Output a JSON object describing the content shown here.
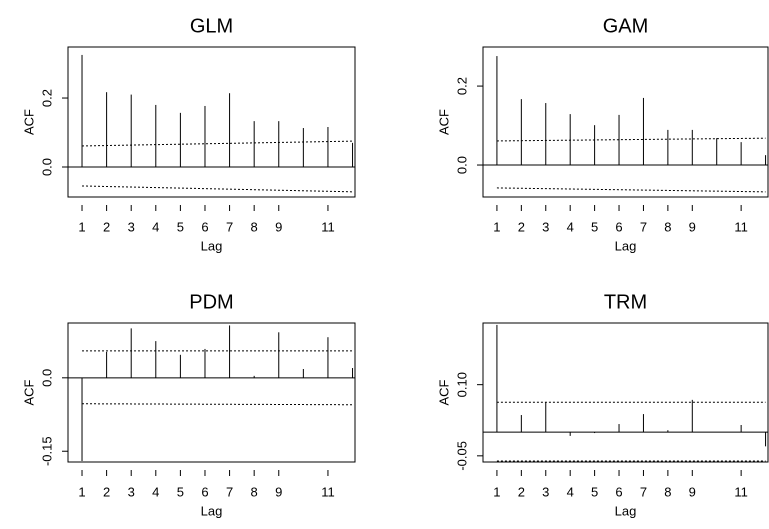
{
  "chart_data": [
    {
      "type": "acf",
      "title": "GLM",
      "x_label": "Lag",
      "y_label": "ACF",
      "x": [
        1,
        2,
        3,
        4,
        5,
        6,
        7,
        8,
        9,
        10,
        11,
        12
      ],
      "values": [
        0.325,
        0.217,
        0.21,
        0.18,
        0.157,
        0.177,
        0.214,
        0.133,
        0.133,
        0.113,
        0.116,
        0.07
      ],
      "conf_band": {
        "x": [
          1,
          12
        ],
        "upper": [
          0.061,
          0.075
        ],
        "lower": [
          -0.055,
          -0.072
        ]
      },
      "xlim": [
        0.43,
        12.1
      ],
      "xticks": [
        1,
        2,
        3,
        4,
        5,
        6,
        7,
        8,
        9,
        11
      ],
      "ylim": [
        -0.087,
        0.348
      ],
      "yticks": [
        {
          "value": 0,
          "label": "0.0"
        },
        0.2
      ],
      "color": "#000000"
    },
    {
      "type": "acf",
      "title": "GAM",
      "x_label": "Lag",
      "y_label": "ACF",
      "x": [
        1,
        2,
        3,
        4,
        5,
        6,
        7,
        8,
        9,
        10,
        11,
        12
      ],
      "values": [
        0.276,
        0.167,
        0.157,
        0.129,
        0.101,
        0.127,
        0.17,
        0.089,
        0.089,
        0.068,
        0.058,
        0.025
      ],
      "conf_band": {
        "x": [
          1,
          12
        ],
        "upper": [
          0.061,
          0.068
        ],
        "lower": [
          -0.058,
          -0.068
        ]
      },
      "xlim": [
        0.43,
        12.1
      ],
      "xticks": [
        1,
        2,
        3,
        4,
        5,
        6,
        7,
        8,
        9,
        11
      ],
      "ylim": [
        -0.081,
        0.299
      ],
      "yticks": [
        {
          "value": 0,
          "label": "0.0"
        },
        0.2
      ],
      "color": "#000000"
    },
    {
      "type": "acf",
      "title": "PDM",
      "x_label": "Lag",
      "y_label": "ACF",
      "x": [
        1,
        2,
        3,
        4,
        5,
        6,
        7,
        8,
        9,
        10,
        11,
        12
      ],
      "values": [
        -0.17,
        0.053,
        0.101,
        0.075,
        0.047,
        0.059,
        0.107,
        0.004,
        0.093,
        0.018,
        0.083,
        0.02
      ],
      "conf_band": {
        "x": [
          1,
          12
        ],
        "upper": [
          0.055,
          0.055
        ],
        "lower": [
          -0.053,
          -0.055
        ]
      },
      "xlim": [
        0.43,
        12.1
      ],
      "xticks": [
        1,
        2,
        3,
        4,
        5,
        6,
        7,
        8,
        9,
        11
      ],
      "ylim": [
        -0.172,
        0.112
      ],
      "yticks": [
        -0.15,
        {
          "value": 0,
          "label": "0.0"
        }
      ],
      "color": "#000000"
    },
    {
      "type": "acf",
      "title": "TRM",
      "x_label": "Lag",
      "y_label": "ACF",
      "x": [
        1,
        2,
        3,
        4,
        5,
        6,
        7,
        8,
        9,
        10,
        11,
        12
      ],
      "values": [
        0.226,
        0.036,
        0.063,
        -0.008,
        -0.002,
        0.017,
        0.038,
        0.004,
        0.068,
        0,
        0.015,
        -0.03
      ],
      "conf_band": {
        "x": [
          1,
          12
        ],
        "upper": [
          0.063,
          0.063
        ],
        "lower": [
          -0.061,
          -0.061
        ]
      },
      "xlim": [
        0.43,
        12.1
      ],
      "xticks": [
        1,
        2,
        3,
        4,
        5,
        6,
        7,
        8,
        9,
        11
      ],
      "ylim": [
        -0.063,
        0.23
      ],
      "yticks": [
        -0.05,
        {
          "value": 0.1,
          "label": "0.10"
        }
      ],
      "color": "#000000"
    }
  ]
}
